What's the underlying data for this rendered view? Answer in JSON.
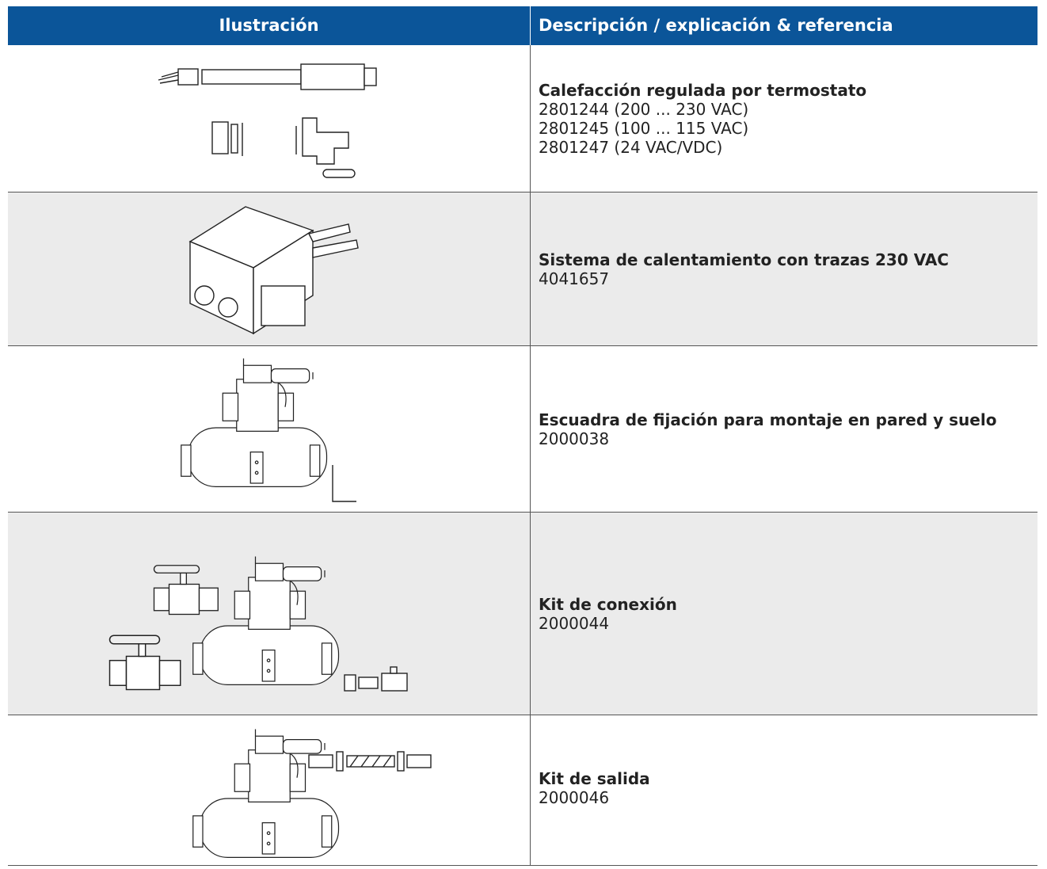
{
  "table": {
    "header": [
      "Ilustración",
      "Descripción / explicación & referencia"
    ],
    "rows": [
      {
        "title": "Calefacción regulada por termostato",
        "refs": [
          "2801244 (200 ... 230 VAC)",
          "2801245 (100 ... 115 VAC)",
          "2801247 (24 VAC/VDC)"
        ]
      },
      {
        "title": "Sistema de calentamiento con trazas 230 VAC",
        "refs": [
          "4041657"
        ]
      },
      {
        "title": "Escuadra de fijación para montaje en pared y suelo",
        "refs": [
          "2000038"
        ]
      },
      {
        "title": "Kit de conexión",
        "refs": [
          "2000044"
        ]
      },
      {
        "title": "Kit de salida",
        "refs": [
          "2000046"
        ]
      }
    ]
  }
}
